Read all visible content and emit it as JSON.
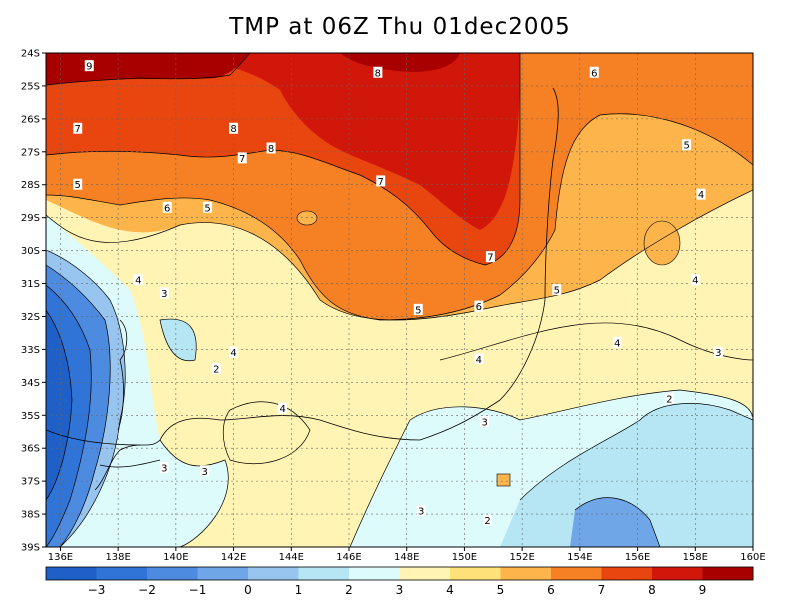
{
  "title": "TMP at 06Z Thu 01dec2005",
  "chart_data": {
    "type": "contour-map",
    "variable": "TMP",
    "lon_range": [
      135.5,
      160
    ],
    "lat_range": [
      -39,
      -24
    ],
    "lat_ticks": [
      "24S",
      "25S",
      "26S",
      "27S",
      "28S",
      "29S",
      "30S",
      "31S",
      "32S",
      "33S",
      "34S",
      "35S",
      "36S",
      "37S",
      "38S",
      "39S"
    ],
    "lon_ticks": [
      "136E",
      "138E",
      "140E",
      "142E",
      "144E",
      "146E",
      "148E",
      "150E",
      "152E",
      "154E",
      "156E",
      "158E",
      "160E"
    ],
    "grid": true,
    "color_bar": {
      "labels": [
        "-3",
        "-2",
        "-1",
        "0",
        "1",
        "2",
        "3",
        "4",
        "5",
        "6",
        "7",
        "8",
        "9"
      ],
      "colors": [
        "#1e5fc8",
        "#2f74d6",
        "#4c8be0",
        "#6fa6e8",
        "#97c5f0",
        "#b6e6f4",
        "#ddfbfb",
        "#fff4b4",
        "#fde27a",
        "#fdb44b",
        "#f68125",
        "#e8450f",
        "#d1170a",
        "#a80000"
      ]
    },
    "contour_labels": [
      {
        "text": "9",
        "lon": 137,
        "lat": -24.4
      },
      {
        "text": "8",
        "lon": 147,
        "lat": -24.6
      },
      {
        "text": "6",
        "lon": 154.5,
        "lat": -24.6
      },
      {
        "text": "7",
        "lon": 136.6,
        "lat": -26.3
      },
      {
        "text": "8",
        "lon": 142,
        "lat": -26.3
      },
      {
        "text": "7",
        "lon": 142.3,
        "lat": -27.2
      },
      {
        "text": "8",
        "lon": 143.3,
        "lat": -26.9
      },
      {
        "text": "5",
        "lon": 157.7,
        "lat": -26.8
      },
      {
        "text": "7",
        "lon": 147.1,
        "lat": -27.9
      },
      {
        "text": "5",
        "lon": 136.6,
        "lat": -28
      },
      {
        "text": "4",
        "lon": 158.2,
        "lat": -28.3
      },
      {
        "text": "6",
        "lon": 139.7,
        "lat": -28.7
      },
      {
        "text": "5",
        "lon": 141.1,
        "lat": -28.7
      },
      {
        "text": "7",
        "lon": 150.9,
        "lat": -30.2
      },
      {
        "text": "4",
        "lon": 158,
        "lat": -30.9
      },
      {
        "text": "4",
        "lon": 138.7,
        "lat": -30.9
      },
      {
        "text": "3",
        "lon": 139.6,
        "lat": -31.3
      },
      {
        "text": "5",
        "lon": 153.2,
        "lat": -31.2
      },
      {
        "text": "5",
        "lon": 148.4,
        "lat": -31.8
      },
      {
        "text": "6",
        "lon": 150.5,
        "lat": -31.7
      },
      {
        "text": "4",
        "lon": 155.3,
        "lat": -32.8
      },
      {
        "text": "3",
        "lon": 158.8,
        "lat": -33.1
      },
      {
        "text": "4",
        "lon": 142,
        "lat": -33.1
      },
      {
        "text": "4",
        "lon": 150.5,
        "lat": -33.3
      },
      {
        "text": "2",
        "lon": 141.4,
        "lat": -33.6
      },
      {
        "text": "2",
        "lon": 157.1,
        "lat": -34.5
      },
      {
        "text": "4",
        "lon": 143.7,
        "lat": -34.8
      },
      {
        "text": "3",
        "lon": 150.7,
        "lat": -35.2
      },
      {
        "text": "3",
        "lon": 139.6,
        "lat": -36.6
      },
      {
        "text": "3",
        "lon": 141,
        "lat": -36.7
      },
      {
        "text": "3",
        "lon": 148.5,
        "lat": -37.9
      },
      {
        "text": "2",
        "lon": 150.8,
        "lat": -38.2
      }
    ]
  }
}
